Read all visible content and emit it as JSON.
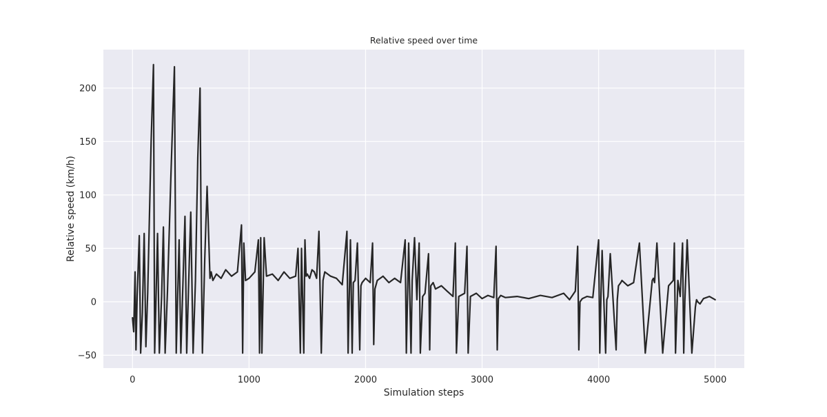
{
  "chart_data": {
    "type": "line",
    "title": "Relative speed over time",
    "xlabel": "Simulation steps",
    "ylabel": "Relative speed (km/h)",
    "xlim": [
      -250,
      5250
    ],
    "ylim": [
      -62,
      236
    ],
    "xticks": [
      0,
      1000,
      2000,
      3000,
      4000,
      5000
    ],
    "yticks": [
      -50,
      0,
      50,
      100,
      150,
      200
    ],
    "grid": true,
    "legend": "none",
    "colors": {
      "background": "#EAEAF2",
      "grid": "#FFFFFF",
      "line": "#262626"
    },
    "series": [
      {
        "x": [
          0,
          10,
          22,
          30,
          40,
          58,
          70,
          85,
          100,
          115,
          130,
          160,
          180,
          190,
          200,
          215,
          230,
          250,
          265,
          280,
          300,
          330,
          360,
          375,
          385,
          400,
          415,
          430,
          450,
          465,
          480,
          500,
          520,
          540,
          560,
          570,
          580,
          590,
          600,
          620,
          640,
          665,
          675,
          690,
          720,
          760,
          800,
          850,
          900,
          935,
          945,
          955,
          970,
          1000,
          1050,
          1080,
          1090,
          1100,
          1110,
          1130,
          1150,
          1200,
          1250,
          1300,
          1350,
          1400,
          1420,
          1440,
          1450,
          1470,
          1480,
          1490,
          1500,
          1520,
          1540,
          1560,
          1580,
          1600,
          1620,
          1635,
          1650,
          1700,
          1750,
          1800,
          1840,
          1850,
          1870,
          1885,
          1895,
          1910,
          1930,
          1950,
          1960,
          1970,
          2000,
          2040,
          2060,
          2070,
          2080,
          2100,
          2150,
          2200,
          2250,
          2300,
          2340,
          2350,
          2370,
          2390,
          2400,
          2420,
          2440,
          2460,
          2470,
          2490,
          2510,
          2540,
          2550,
          2560,
          2580,
          2600,
          2650,
          2700,
          2750,
          2770,
          2780,
          2800,
          2850,
          2870,
          2880,
          2900,
          2950,
          3000,
          3050,
          3100,
          3120,
          3130,
          3140,
          3160,
          3200,
          3300,
          3400,
          3500,
          3600,
          3700,
          3750,
          3800,
          3820,
          3830,
          3840,
          3860,
          3900,
          3950,
          4000,
          4010,
          4020,
          4030,
          4060,
          4070,
          4080,
          4100,
          4150,
          4160,
          4170,
          4190,
          4200,
          4250,
          4300,
          4350,
          4400,
          4460,
          4470,
          4480,
          4500,
          4550,
          4600,
          4640,
          4650,
          4660,
          4680,
          4700,
          4720,
          4730,
          4740,
          4760,
          4800,
          4830,
          4840,
          4850,
          4870,
          4900,
          4950,
          5000
        ],
        "values": [
          -15,
          -28,
          28,
          -45,
          5,
          62,
          -48,
          -10,
          64,
          -42,
          8,
          150,
          222,
          -48,
          -5,
          64,
          -48,
          5,
          70,
          -48,
          10,
          120,
          220,
          -48,
          -5,
          58,
          -48,
          8,
          80,
          -48,
          10,
          84,
          -48,
          20,
          135,
          170,
          200,
          50,
          -48,
          40,
          108,
          22,
          28,
          20,
          26,
          22,
          30,
          24,
          28,
          72,
          -48,
          55,
          20,
          22,
          28,
          58,
          -48,
          60,
          -48,
          60,
          24,
          26,
          20,
          28,
          22,
          24,
          50,
          -48,
          50,
          -48,
          58,
          24,
          26,
          22,
          30,
          28,
          22,
          66,
          -48,
          20,
          28,
          24,
          22,
          16,
          66,
          -48,
          58,
          -48,
          18,
          20,
          55,
          -45,
          15,
          18,
          22,
          18,
          55,
          -40,
          12,
          20,
          24,
          18,
          22,
          18,
          58,
          -48,
          55,
          -48,
          20,
          60,
          2,
          55,
          -48,
          5,
          8,
          45,
          -45,
          15,
          18,
          12,
          15,
          10,
          5,
          55,
          -48,
          5,
          8,
          52,
          -48,
          5,
          8,
          3,
          6,
          4,
          52,
          -45,
          3,
          6,
          4,
          5,
          3,
          6,
          4,
          8,
          2,
          10,
          52,
          -45,
          0,
          3,
          5,
          4,
          58,
          -48,
          5,
          48,
          -48,
          2,
          5,
          45,
          -45,
          2,
          15,
          18,
          20,
          15,
          18,
          55,
          -48,
          20,
          22,
          18,
          55,
          -48,
          15,
          20,
          55,
          -48,
          20,
          5,
          55,
          -48,
          2,
          58,
          -48,
          -5,
          2,
          0,
          -2,
          3,
          5,
          2
        ]
      }
    ]
  }
}
